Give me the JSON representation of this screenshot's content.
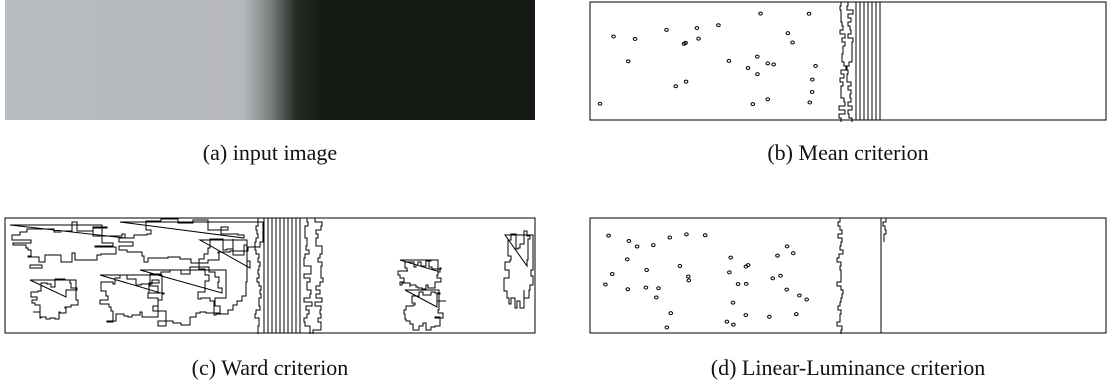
{
  "figure": {
    "panels": [
      {
        "caption": "(a) input image"
      },
      {
        "caption": "(b) Mean criterion"
      },
      {
        "caption": "(c) Ward criterion"
      },
      {
        "caption": "(d) Linear-Luminance criterion"
      }
    ]
  }
}
